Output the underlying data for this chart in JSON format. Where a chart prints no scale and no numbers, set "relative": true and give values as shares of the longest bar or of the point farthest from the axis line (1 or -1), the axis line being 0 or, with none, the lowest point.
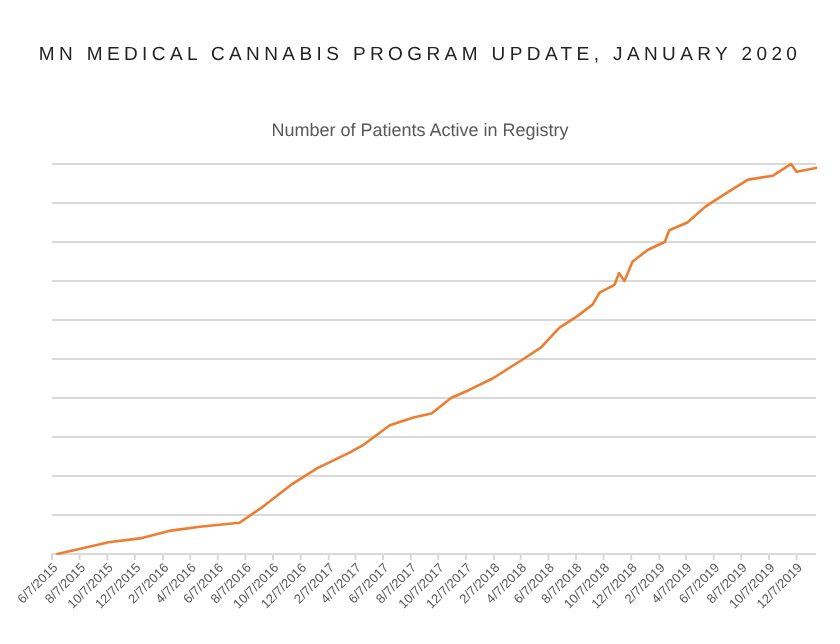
{
  "chart_data": {
    "type": "line",
    "title": "MN MEDICAL CANNABIS PROGRAM UPDATE, JANUARY 2020",
    "subtitle": "Number of Patients Active in Registry",
    "relative": true,
    "grid": true,
    "marker": "none",
    "line_style": "solid",
    "x": [
      "2015-06-19",
      "2015-10-10",
      "2015-12-18",
      "2016-02-25",
      "2016-04-28",
      "2016-07-25",
      "2016-09-13",
      "2016-11-19",
      "2017-01-13",
      "2017-03-25",
      "2017-04-25",
      "2017-06-22",
      "2017-08-13",
      "2017-09-22",
      "2017-11-04",
      "2017-12-13",
      "2018-02-04",
      "2018-04-13",
      "2018-05-22",
      "2018-07-01",
      "2018-08-10",
      "2018-09-13",
      "2018-09-28",
      "2018-10-31",
      "2018-11-10",
      "2018-11-22",
      "2018-12-10",
      "2019-01-13",
      "2019-02-19",
      "2019-03-01",
      "2019-04-10",
      "2019-05-19",
      "2019-06-28",
      "2019-08-22",
      "2019-10-16",
      "2019-11-25",
      "2019-12-07",
      "2020-01-19"
    ],
    "series": [
      {
        "color": "#ed7d31",
        "values": [
          0,
          0.03,
          0.04,
          0.06,
          0.07,
          0.08,
          0.12,
          0.18,
          0.22,
          0.26,
          0.28,
          0.33,
          0.35,
          0.36,
          0.4,
          0.42,
          0.45,
          0.5,
          0.53,
          0.58,
          0.61,
          0.64,
          0.67,
          0.69,
          0.72,
          0.7,
          0.75,
          0.78,
          0.8,
          0.83,
          0.85,
          0.89,
          0.92,
          0.96,
          0.97,
          1,
          0.98,
          0.99
        ]
      }
    ],
    "xlim": [
      "2015-06-07",
      "2020-01-19"
    ],
    "xticks": [
      {
        "value": "2015-06-07",
        "label": "6/7/2015"
      },
      {
        "value": "2015-08-07",
        "label": "8/7/2015"
      },
      {
        "value": "2015-10-07",
        "label": "10/7/2015"
      },
      {
        "value": "2015-12-07",
        "label": "12/7/2015"
      },
      {
        "value": "2016-02-07",
        "label": "2/7/2016"
      },
      {
        "value": "2016-04-07",
        "label": "4/7/2016"
      },
      {
        "value": "2016-06-07",
        "label": "6/7/2016"
      },
      {
        "value": "2016-08-07",
        "label": "8/7/2016"
      },
      {
        "value": "2016-10-07",
        "label": "10/7/2016"
      },
      {
        "value": "2016-12-07",
        "label": "12/7/2016"
      },
      {
        "value": "2017-02-07",
        "label": "2/7/2017"
      },
      {
        "value": "2017-04-07",
        "label": "4/7/2017"
      },
      {
        "value": "2017-06-07",
        "label": "6/7/2017"
      },
      {
        "value": "2017-08-07",
        "label": "8/7/2017"
      },
      {
        "value": "2017-10-07",
        "label": "10/7/2017"
      },
      {
        "value": "2017-12-07",
        "label": "12/7/2017"
      },
      {
        "value": "2018-02-07",
        "label": "2/7/2018"
      },
      {
        "value": "2018-04-07",
        "label": "4/7/2018"
      },
      {
        "value": "2018-06-07",
        "label": "6/7/2018"
      },
      {
        "value": "2018-08-07",
        "label": "8/7/2018"
      },
      {
        "value": "2018-10-07",
        "label": "10/7/2018"
      },
      {
        "value": "2018-12-07",
        "label": "12/7/2018"
      },
      {
        "value": "2019-02-07",
        "label": "2/7/2019"
      },
      {
        "value": "2019-04-07",
        "label": "4/7/2019"
      },
      {
        "value": "2019-06-07",
        "label": "6/7/2019"
      },
      {
        "value": "2019-08-07",
        "label": "8/7/2019"
      },
      {
        "value": "2019-10-07",
        "label": "10/7/2019"
      },
      {
        "value": "2019-12-07",
        "label": "12/7/2019"
      }
    ]
  }
}
